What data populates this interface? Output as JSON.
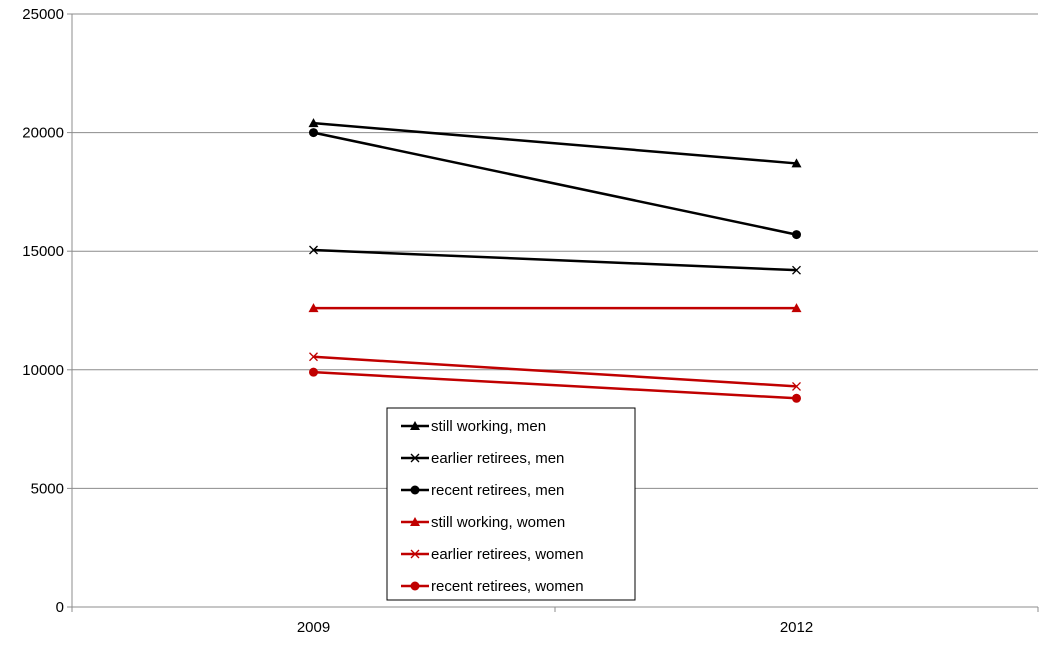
{
  "chart_data": {
    "type": "line",
    "categories": [
      "2009",
      "2012"
    ],
    "ylim": [
      0,
      25000
    ],
    "yticks": [
      "0",
      "5000",
      "10000",
      "15000",
      "20000",
      "25000"
    ],
    "grid": true,
    "legend_position": "bottom-center",
    "series": [
      {
        "name": "still working, men",
        "values": [
          20400,
          18700
        ],
        "color": "#000000",
        "marker": "triangle"
      },
      {
        "name": "earlier retirees, men",
        "values": [
          15050,
          14200
        ],
        "color": "#000000",
        "marker": "x"
      },
      {
        "name": "recent retirees, men",
        "values": [
          20000,
          15700
        ],
        "color": "#000000",
        "marker": "circle"
      },
      {
        "name": "still working, women",
        "values": [
          12600,
          12600
        ],
        "color": "#c00000",
        "marker": "triangle"
      },
      {
        "name": "earlier retirees, women",
        "values": [
          10550,
          9300
        ],
        "color": "#c00000",
        "marker": "x"
      },
      {
        "name": "recent retirees, women",
        "values": [
          9900,
          8800
        ],
        "color": "#c00000",
        "marker": "circle"
      }
    ]
  }
}
